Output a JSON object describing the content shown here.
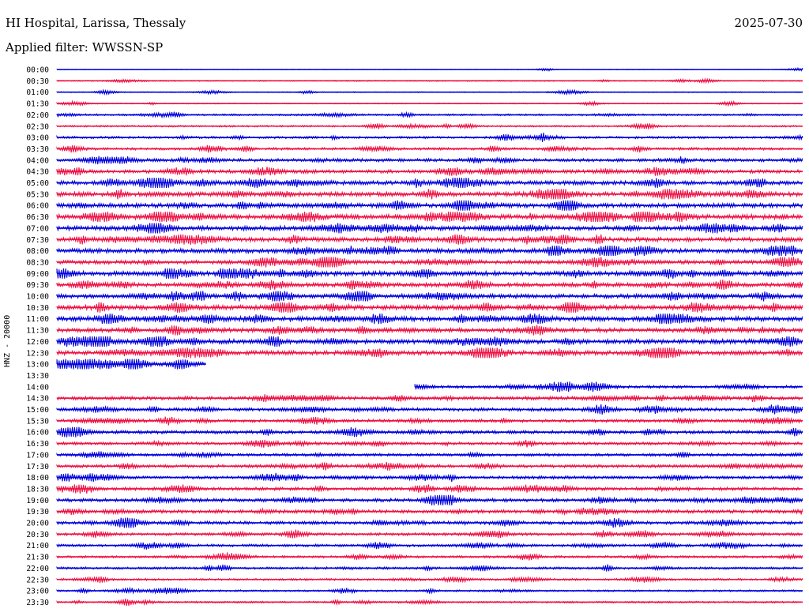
{
  "header": {
    "station": "HI Hospital, Larissa, Thessaly",
    "date": "2025-07-30",
    "filter": "Applied filter: WWSSN-SP",
    "channel": "HNZ - 20000"
  },
  "colors": {
    "even_line": "#0000dd",
    "odd_line": "#ee1144",
    "background": "#ffffff"
  },
  "chart_data": {
    "type": "line",
    "title": "HI Hospital, Larissa, Thessaly",
    "subtitle": "Applied filter: WWSSN-SP",
    "ylabel": "HNZ - 20000",
    "xlabel": "",
    "row_minutes": 30,
    "rows": [
      {
        "label": "00:00",
        "start": 0,
        "end": 1,
        "activity": 0.1
      },
      {
        "label": "00:30",
        "start": 0,
        "end": 1,
        "activity": 0.6
      },
      {
        "label": "01:00",
        "start": 0,
        "end": 1,
        "activity": 0.4
      },
      {
        "label": "01:30",
        "start": 0,
        "end": 1,
        "activity": 0.5
      },
      {
        "label": "02:00",
        "start": 0,
        "end": 1,
        "activity": 1.2
      },
      {
        "label": "02:30",
        "start": 0,
        "end": 1,
        "activity": 1.1
      },
      {
        "label": "03:00",
        "start": 0,
        "end": 1,
        "activity": 1.6
      },
      {
        "label": "03:30",
        "start": 0,
        "end": 1,
        "activity": 1.8
      },
      {
        "label": "04:00",
        "start": 0,
        "end": 1,
        "activity": 2.4
      },
      {
        "label": "04:30",
        "start": 0,
        "end": 1,
        "activity": 2.6
      },
      {
        "label": "05:00",
        "start": 0,
        "end": 1,
        "activity": 3.2
      },
      {
        "label": "05:30",
        "start": 0,
        "end": 1,
        "activity": 3.6
      },
      {
        "label": "06:00",
        "start": 0,
        "end": 1,
        "activity": 3.4
      },
      {
        "label": "06:30",
        "start": 0,
        "end": 1,
        "activity": 4.0
      },
      {
        "label": "07:00",
        "start": 0,
        "end": 1,
        "activity": 3.6
      },
      {
        "label": "07:30",
        "start": 0,
        "end": 1,
        "activity": 3.4
      },
      {
        "label": "08:00",
        "start": 0,
        "end": 1,
        "activity": 3.6
      },
      {
        "label": "08:30",
        "start": 0,
        "end": 1,
        "activity": 3.0
      },
      {
        "label": "09:00",
        "start": 0,
        "end": 1,
        "activity": 3.8
      },
      {
        "label": "09:30",
        "start": 0,
        "end": 1,
        "activity": 3.2
      },
      {
        "label": "10:00",
        "start": 0,
        "end": 1,
        "activity": 3.4
      },
      {
        "label": "10:30",
        "start": 0,
        "end": 1,
        "activity": 3.8
      },
      {
        "label": "11:00",
        "start": 0,
        "end": 1,
        "activity": 3.9
      },
      {
        "label": "11:30",
        "start": 0,
        "end": 1,
        "activity": 3.4
      },
      {
        "label": "12:00",
        "start": 0,
        "end": 1,
        "activity": 3.6
      },
      {
        "label": "12:30",
        "start": 0,
        "end": 1,
        "activity": 3.4
      },
      {
        "label": "13:00",
        "start": 0,
        "end": 0.2,
        "activity": 2.8
      },
      {
        "label": "13:30",
        "start": 0,
        "end": 0,
        "activity": 0
      },
      {
        "label": "14:00",
        "start": 0.48,
        "end": 1,
        "activity": 2.0
      },
      {
        "label": "14:30",
        "start": 0,
        "end": 1,
        "activity": 2.6
      },
      {
        "label": "15:00",
        "start": 0,
        "end": 1,
        "activity": 2.4
      },
      {
        "label": "15:30",
        "start": 0,
        "end": 1,
        "activity": 2.2
      },
      {
        "label": "16:00",
        "start": 0,
        "end": 1,
        "activity": 2.4
      },
      {
        "label": "16:30",
        "start": 0,
        "end": 1,
        "activity": 2.0
      },
      {
        "label": "17:00",
        "start": 0,
        "end": 1,
        "activity": 2.0
      },
      {
        "label": "17:30",
        "start": 0,
        "end": 1,
        "activity": 2.2
      },
      {
        "label": "18:00",
        "start": 0,
        "end": 1,
        "activity": 2.2
      },
      {
        "label": "18:30",
        "start": 0,
        "end": 1,
        "activity": 2.4
      },
      {
        "label": "19:00",
        "start": 0,
        "end": 1,
        "activity": 2.6
      },
      {
        "label": "19:30",
        "start": 0,
        "end": 1,
        "activity": 2.6
      },
      {
        "label": "20:00",
        "start": 0,
        "end": 1,
        "activity": 2.4
      },
      {
        "label": "20:30",
        "start": 0,
        "end": 1,
        "activity": 2.0
      },
      {
        "label": "21:00",
        "start": 0,
        "end": 1,
        "activity": 1.8
      },
      {
        "label": "21:30",
        "start": 0,
        "end": 1,
        "activity": 1.6
      },
      {
        "label": "22:00",
        "start": 0,
        "end": 1,
        "activity": 1.6
      },
      {
        "label": "22:30",
        "start": 0,
        "end": 1,
        "activity": 1.4
      },
      {
        "label": "23:00",
        "start": 0,
        "end": 1,
        "activity": 1.2
      },
      {
        "label": "23:30",
        "start": 0,
        "end": 1,
        "activity": 1.2
      }
    ]
  }
}
